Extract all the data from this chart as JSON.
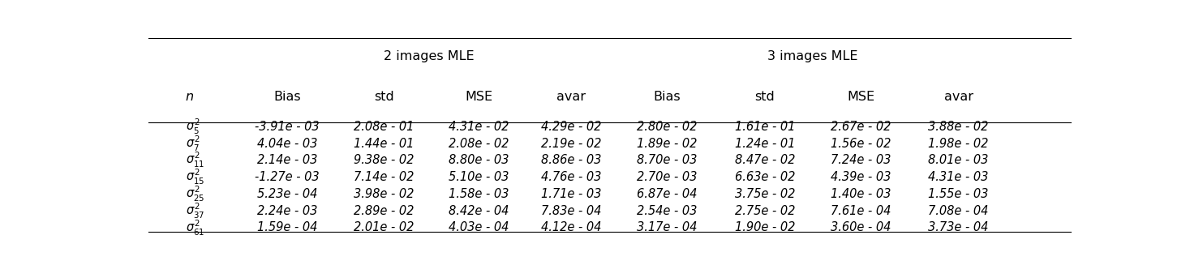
{
  "col_header_row1": [
    "",
    "2 images MLE",
    "",
    "",
    "",
    "3 images MLE",
    "",
    "",
    ""
  ],
  "col_header_row2": [
    "n",
    "Bias",
    "std",
    "MSE",
    "avar",
    "Bias",
    "std",
    "MSE",
    "avar"
  ],
  "row_labels": [
    "$\\sigma_5^2$",
    "$\\sigma_7^2$",
    "$\\sigma_{11}^2$",
    "$\\sigma_{15}^2$",
    "$\\sigma_{25}^2$",
    "$\\sigma_{37}^2$",
    "$\\sigma_{61}^2$"
  ],
  "data": [
    [
      "-3.91e - 03",
      "2.08e - 01",
      "4.31e - 02",
      "4.29e - 02",
      "2.80e - 02",
      "1.61e - 01",
      "2.67e - 02",
      "3.88e - 02"
    ],
    [
      "4.04e - 03",
      "1.44e - 01",
      "2.08e - 02",
      "2.19e - 02",
      "1.89e - 02",
      "1.24e - 01",
      "1.56e - 02",
      "1.98e - 02"
    ],
    [
      "2.14e - 03",
      "9.38e - 02",
      "8.80e - 03",
      "8.86e - 03",
      "8.70e - 03",
      "8.47e - 02",
      "7.24e - 03",
      "8.01e - 03"
    ],
    [
      "-1.27e - 03",
      "7.14e - 02",
      "5.10e - 03",
      "4.76e - 03",
      "2.70e - 03",
      "6.63e - 02",
      "4.39e - 03",
      "4.31e - 03"
    ],
    [
      "5.23e - 04",
      "3.98e - 02",
      "1.58e - 03",
      "1.71e - 03",
      "6.87e - 04",
      "3.75e - 02",
      "1.40e - 03",
      "1.55e - 03"
    ],
    [
      "2.24e - 03",
      "2.89e - 02",
      "8.42e - 04",
      "7.83e - 04",
      "2.54e - 03",
      "2.75e - 02",
      "7.61e - 04",
      "7.08e - 04"
    ],
    [
      "1.59e - 04",
      "2.01e - 02",
      "4.03e - 04",
      "4.12e - 04",
      "3.17e - 04",
      "1.90e - 02",
      "3.60e - 04",
      "3.73e - 04"
    ]
  ],
  "bg_color": "#ffffff",
  "line_color": "#000000",
  "font_size": 10.5,
  "header_font_size": 11.5
}
